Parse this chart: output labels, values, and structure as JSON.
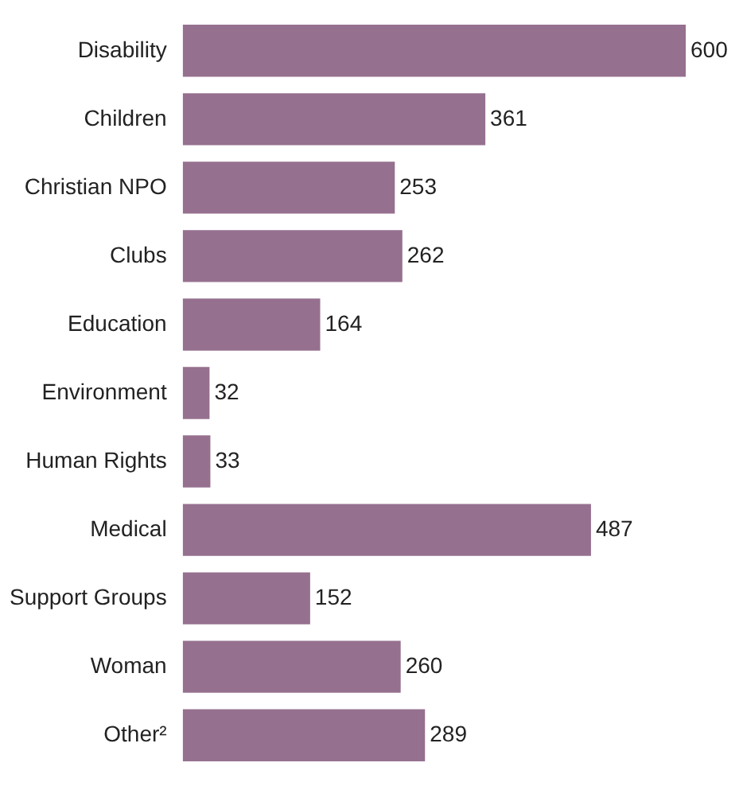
{
  "chart_data": {
    "type": "bar",
    "orientation": "horizontal",
    "categories": [
      "Disability",
      "Children",
      "Christian NPO",
      "Clubs",
      "Education",
      "Environment",
      "Human Rights",
      "Medical",
      "Support Groups",
      "Woman",
      "Other²"
    ],
    "values": [
      600,
      361,
      253,
      262,
      164,
      32,
      33,
      487,
      152,
      260,
      289
    ],
    "color": "#96708f",
    "data_labels": true,
    "legend": false
  }
}
